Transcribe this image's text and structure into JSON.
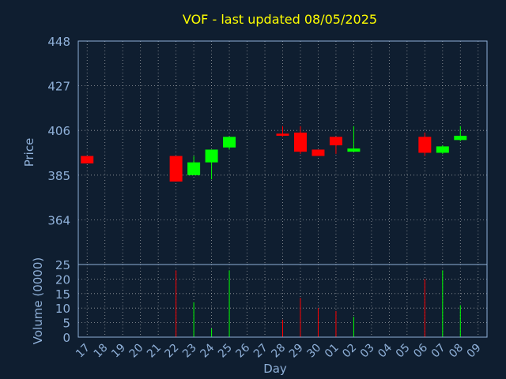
{
  "chart_data": {
    "type": "candlestick",
    "title": "VOF - last updated 08/05/2025",
    "xlabel": "Day",
    "ylabel": "Price",
    "volume_label": "Volume (0000)",
    "days": [
      "17",
      "18",
      "19",
      "20",
      "21",
      "22",
      "23",
      "24",
      "25",
      "26",
      "27",
      "28",
      "29",
      "30",
      "01",
      "02",
      "03",
      "04",
      "05",
      "06",
      "07",
      "08",
      "09"
    ],
    "price_ylim": [
      448,
      343
    ],
    "price_yticks": [
      "448",
      "427",
      "406",
      "385",
      "364"
    ],
    "volume_ylim": [
      0,
      25
    ],
    "volume_yticks": [
      "25",
      "20",
      "15",
      "10",
      "5",
      "0"
    ],
    "grid": true,
    "colors": {
      "background": "#0f1e30",
      "title": "#ffff00",
      "axis_text": "#8fb0d8",
      "grid": "#c8c8c8",
      "up": "#00ff00",
      "down": "#ff0000"
    },
    "candles": [
      {
        "day": "17",
        "open": 394,
        "close": 390.5,
        "high": 394,
        "low": 390.5
      },
      {
        "day": "22",
        "open": 394,
        "close": 382,
        "high": 394,
        "low": 382
      },
      {
        "day": "23",
        "open": 385,
        "close": 391,
        "high": 394,
        "low": 385
      },
      {
        "day": "24",
        "open": 391,
        "close": 397,
        "high": 397,
        "low": 383
      },
      {
        "day": "25",
        "open": 398,
        "close": 403,
        "high": 403,
        "low": 397
      },
      {
        "day": "28",
        "open": 404.5,
        "close": 403.5,
        "high": 408,
        "low": 403
      },
      {
        "day": "29",
        "open": 405,
        "close": 396,
        "high": 408,
        "low": 395
      },
      {
        "day": "30",
        "open": 397,
        "close": 394,
        "high": 397,
        "low": 394
      },
      {
        "day": "01",
        "open": 403,
        "close": 399,
        "high": 403,
        "low": 395
      },
      {
        "day": "02",
        "open": 396,
        "close": 397.5,
        "high": 408,
        "low": 396
      },
      {
        "day": "06",
        "open": 403,
        "close": 395.5,
        "high": 405,
        "low": 394
      },
      {
        "day": "07",
        "open": 395.5,
        "close": 398.5,
        "high": 399,
        "low": 395
      },
      {
        "day": "08",
        "open": 401.5,
        "close": 403.5,
        "high": 408,
        "low": 401
      }
    ],
    "volumes": [
      {
        "day": "22",
        "value": 23,
        "dir": "down"
      },
      {
        "day": "23",
        "value": 12,
        "dir": "up"
      },
      {
        "day": "24",
        "value": 3,
        "dir": "up"
      },
      {
        "day": "25",
        "value": 23,
        "dir": "up"
      },
      {
        "day": "28",
        "value": 6,
        "dir": "down"
      },
      {
        "day": "29",
        "value": 13.5,
        "dir": "down"
      },
      {
        "day": "30",
        "value": 10,
        "dir": "down"
      },
      {
        "day": "01",
        "value": 9,
        "dir": "down"
      },
      {
        "day": "02",
        "value": 7,
        "dir": "up"
      },
      {
        "day": "06",
        "value": 20,
        "dir": "down"
      },
      {
        "day": "07",
        "value": 23,
        "dir": "up"
      },
      {
        "day": "08",
        "value": 11,
        "dir": "up"
      }
    ]
  }
}
